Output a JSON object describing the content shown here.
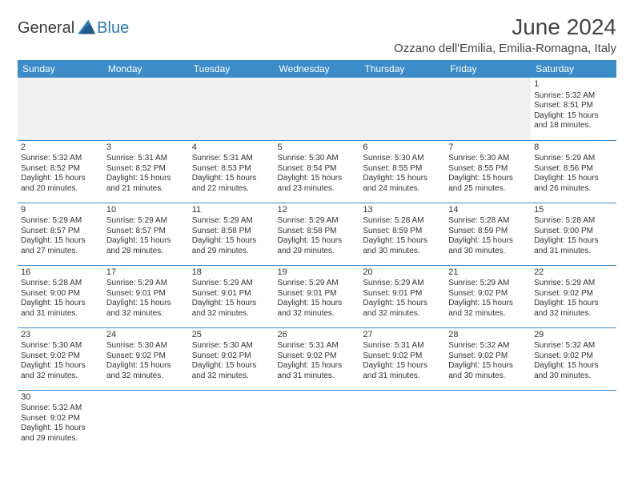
{
  "logo": {
    "part1": "General",
    "part2": "Blue"
  },
  "title": "June 2024",
  "location": "Ozzano dell'Emilia, Emilia-Romagna, Italy",
  "colors": {
    "header_bg": "#3b8bc8",
    "header_text": "#ffffff",
    "cell_border": "#3b8bc8",
    "body_text": "#333333",
    "logo_dark": "#3a3a3a",
    "logo_blue": "#2a7ab9",
    "empty_bg": "#f0f0f0"
  },
  "typography": {
    "title_fontsize": 28,
    "location_fontsize": 15,
    "header_fontsize": 12,
    "daynum_fontsize": 11,
    "cell_fontsize": 10
  },
  "weekdays": [
    "Sunday",
    "Monday",
    "Tuesday",
    "Wednesday",
    "Thursday",
    "Friday",
    "Saturday"
  ],
  "weeks": [
    [
      null,
      null,
      null,
      null,
      null,
      null,
      {
        "n": "1",
        "sr": "Sunrise: 5:32 AM",
        "ss": "Sunset: 8:51 PM",
        "d1": "Daylight: 15 hours",
        "d2": "and 18 minutes."
      }
    ],
    [
      {
        "n": "2",
        "sr": "Sunrise: 5:32 AM",
        "ss": "Sunset: 8:52 PM",
        "d1": "Daylight: 15 hours",
        "d2": "and 20 minutes."
      },
      {
        "n": "3",
        "sr": "Sunrise: 5:31 AM",
        "ss": "Sunset: 8:52 PM",
        "d1": "Daylight: 15 hours",
        "d2": "and 21 minutes."
      },
      {
        "n": "4",
        "sr": "Sunrise: 5:31 AM",
        "ss": "Sunset: 8:53 PM",
        "d1": "Daylight: 15 hours",
        "d2": "and 22 minutes."
      },
      {
        "n": "5",
        "sr": "Sunrise: 5:30 AM",
        "ss": "Sunset: 8:54 PM",
        "d1": "Daylight: 15 hours",
        "d2": "and 23 minutes."
      },
      {
        "n": "6",
        "sr": "Sunrise: 5:30 AM",
        "ss": "Sunset: 8:55 PM",
        "d1": "Daylight: 15 hours",
        "d2": "and 24 minutes."
      },
      {
        "n": "7",
        "sr": "Sunrise: 5:30 AM",
        "ss": "Sunset: 8:55 PM",
        "d1": "Daylight: 15 hours",
        "d2": "and 25 minutes."
      },
      {
        "n": "8",
        "sr": "Sunrise: 5:29 AM",
        "ss": "Sunset: 8:56 PM",
        "d1": "Daylight: 15 hours",
        "d2": "and 26 minutes."
      }
    ],
    [
      {
        "n": "9",
        "sr": "Sunrise: 5:29 AM",
        "ss": "Sunset: 8:57 PM",
        "d1": "Daylight: 15 hours",
        "d2": "and 27 minutes."
      },
      {
        "n": "10",
        "sr": "Sunrise: 5:29 AM",
        "ss": "Sunset: 8:57 PM",
        "d1": "Daylight: 15 hours",
        "d2": "and 28 minutes."
      },
      {
        "n": "11",
        "sr": "Sunrise: 5:29 AM",
        "ss": "Sunset: 8:58 PM",
        "d1": "Daylight: 15 hours",
        "d2": "and 29 minutes."
      },
      {
        "n": "12",
        "sr": "Sunrise: 5:29 AM",
        "ss": "Sunset: 8:58 PM",
        "d1": "Daylight: 15 hours",
        "d2": "and 29 minutes."
      },
      {
        "n": "13",
        "sr": "Sunrise: 5:28 AM",
        "ss": "Sunset: 8:59 PM",
        "d1": "Daylight: 15 hours",
        "d2": "and 30 minutes."
      },
      {
        "n": "14",
        "sr": "Sunrise: 5:28 AM",
        "ss": "Sunset: 8:59 PM",
        "d1": "Daylight: 15 hours",
        "d2": "and 30 minutes."
      },
      {
        "n": "15",
        "sr": "Sunrise: 5:28 AM",
        "ss": "Sunset: 9:00 PM",
        "d1": "Daylight: 15 hours",
        "d2": "and 31 minutes."
      }
    ],
    [
      {
        "n": "16",
        "sr": "Sunrise: 5:28 AM",
        "ss": "Sunset: 9:00 PM",
        "d1": "Daylight: 15 hours",
        "d2": "and 31 minutes."
      },
      {
        "n": "17",
        "sr": "Sunrise: 5:29 AM",
        "ss": "Sunset: 9:01 PM",
        "d1": "Daylight: 15 hours",
        "d2": "and 32 minutes."
      },
      {
        "n": "18",
        "sr": "Sunrise: 5:29 AM",
        "ss": "Sunset: 9:01 PM",
        "d1": "Daylight: 15 hours",
        "d2": "and 32 minutes."
      },
      {
        "n": "19",
        "sr": "Sunrise: 5:29 AM",
        "ss": "Sunset: 9:01 PM",
        "d1": "Daylight: 15 hours",
        "d2": "and 32 minutes."
      },
      {
        "n": "20",
        "sr": "Sunrise: 5:29 AM",
        "ss": "Sunset: 9:01 PM",
        "d1": "Daylight: 15 hours",
        "d2": "and 32 minutes."
      },
      {
        "n": "21",
        "sr": "Sunrise: 5:29 AM",
        "ss": "Sunset: 9:02 PM",
        "d1": "Daylight: 15 hours",
        "d2": "and 32 minutes."
      },
      {
        "n": "22",
        "sr": "Sunrise: 5:29 AM",
        "ss": "Sunset: 9:02 PM",
        "d1": "Daylight: 15 hours",
        "d2": "and 32 minutes."
      }
    ],
    [
      {
        "n": "23",
        "sr": "Sunrise: 5:30 AM",
        "ss": "Sunset: 9:02 PM",
        "d1": "Daylight: 15 hours",
        "d2": "and 32 minutes."
      },
      {
        "n": "24",
        "sr": "Sunrise: 5:30 AM",
        "ss": "Sunset: 9:02 PM",
        "d1": "Daylight: 15 hours",
        "d2": "and 32 minutes."
      },
      {
        "n": "25",
        "sr": "Sunrise: 5:30 AM",
        "ss": "Sunset: 9:02 PM",
        "d1": "Daylight: 15 hours",
        "d2": "and 32 minutes."
      },
      {
        "n": "26",
        "sr": "Sunrise: 5:31 AM",
        "ss": "Sunset: 9:02 PM",
        "d1": "Daylight: 15 hours",
        "d2": "and 31 minutes."
      },
      {
        "n": "27",
        "sr": "Sunrise: 5:31 AM",
        "ss": "Sunset: 9:02 PM",
        "d1": "Daylight: 15 hours",
        "d2": "and 31 minutes."
      },
      {
        "n": "28",
        "sr": "Sunrise: 5:32 AM",
        "ss": "Sunset: 9:02 PM",
        "d1": "Daylight: 15 hours",
        "d2": "and 30 minutes."
      },
      {
        "n": "29",
        "sr": "Sunrise: 5:32 AM",
        "ss": "Sunset: 9:02 PM",
        "d1": "Daylight: 15 hours",
        "d2": "and 30 minutes."
      }
    ],
    [
      {
        "n": "30",
        "sr": "Sunrise: 5:32 AM",
        "ss": "Sunset: 9:02 PM",
        "d1": "Daylight: 15 hours",
        "d2": "and 29 minutes."
      },
      null,
      null,
      null,
      null,
      null,
      null
    ]
  ]
}
